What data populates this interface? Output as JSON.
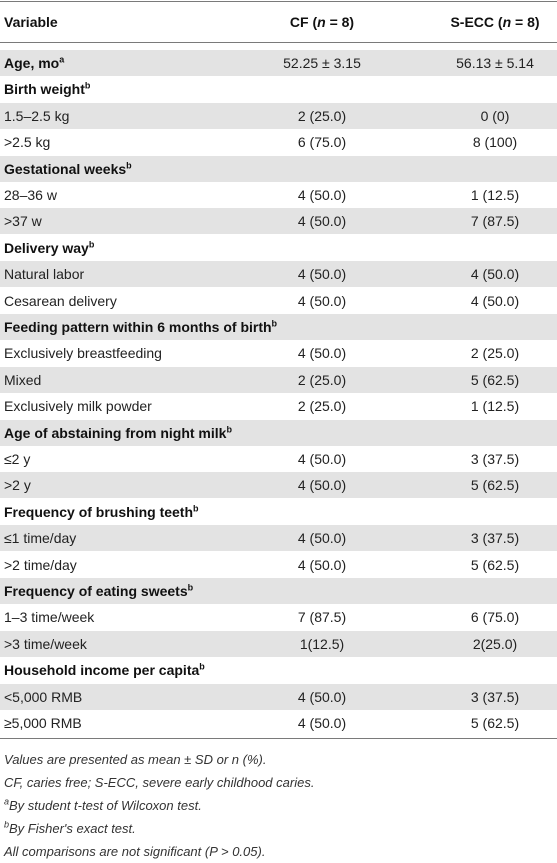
{
  "header": {
    "variable": "Variable",
    "cf_label": "CF (",
    "cf_n": "n",
    "cf_count": " = 8)",
    "secc_label": "S-ECC (",
    "secc_n": "n",
    "secc_count": " = 8)"
  },
  "rows": [
    {
      "label": "Age, mo",
      "sup": "a",
      "cf": "52.25 ± 3.15",
      "secc": "56.13 ± 5.14",
      "section": true
    },
    {
      "label": "Birth weight",
      "sup": "b",
      "cf": "",
      "secc": "",
      "section": true
    },
    {
      "label": "1.5–2.5 kg",
      "sup": "",
      "cf": "2 (25.0)",
      "secc": "0 (0)",
      "section": false
    },
    {
      "label": ">2.5 kg",
      "sup": "",
      "cf": "6 (75.0)",
      "secc": "8 (100)",
      "section": false
    },
    {
      "label": "Gestational weeks",
      "sup": "b",
      "cf": "",
      "secc": "",
      "section": true
    },
    {
      "label": "28–36 w",
      "sup": "",
      "cf": "4 (50.0)",
      "secc": "1 (12.5)",
      "section": false
    },
    {
      "label": ">37 w",
      "sup": "",
      "cf": "4 (50.0)",
      "secc": "7 (87.5)",
      "section": false
    },
    {
      "label": "Delivery way",
      "sup": "b",
      "cf": "",
      "secc": "",
      "section": true
    },
    {
      "label": "Natural labor",
      "sup": "",
      "cf": "4 (50.0)",
      "secc": "4 (50.0)",
      "section": false
    },
    {
      "label": "Cesarean delivery",
      "sup": "",
      "cf": "4 (50.0)",
      "secc": "4 (50.0)",
      "section": false
    },
    {
      "label": "Feeding pattern within 6 months of birth",
      "sup": "b",
      "cf": "",
      "secc": "",
      "section": true
    },
    {
      "label": "Exclusively breastfeeding",
      "sup": "",
      "cf": "4 (50.0)",
      "secc": "2 (25.0)",
      "section": false
    },
    {
      "label": "Mixed",
      "sup": "",
      "cf": "2 (25.0)",
      "secc": "5 (62.5)",
      "section": false
    },
    {
      "label": "Exclusively milk powder",
      "sup": "",
      "cf": "2 (25.0)",
      "secc": "1 (12.5)",
      "section": false
    },
    {
      "label": "Age of abstaining from night milk",
      "sup": "b",
      "cf": "",
      "secc": "",
      "section": true
    },
    {
      "label": "≤2 y",
      "sup": "",
      "cf": "4 (50.0)",
      "secc": "3 (37.5)",
      "section": false
    },
    {
      "label": ">2 y",
      "sup": "",
      "cf": "4 (50.0)",
      "secc": "5 (62.5)",
      "section": false
    },
    {
      "label": "Frequency of brushing teeth",
      "sup": "b",
      "cf": "",
      "secc": "",
      "section": true
    },
    {
      "label": "≤1 time/day",
      "sup": "",
      "cf": "4 (50.0)",
      "secc": "3 (37.5)",
      "section": false
    },
    {
      "label": ">2 time/day",
      "sup": "",
      "cf": "4 (50.0)",
      "secc": "5 (62.5)",
      "section": false
    },
    {
      "label": "Frequency of eating sweets",
      "sup": "b",
      "cf": "",
      "secc": "",
      "section": true
    },
    {
      "label": "1–3 time/week",
      "sup": "",
      "cf": "7 (87.5)",
      "secc": "6 (75.0)",
      "section": false
    },
    {
      "label": ">3 time/week",
      "sup": "",
      "cf": "1(12.5)",
      "secc": "2(25.0)",
      "section": false
    },
    {
      "label": "Household income per capita",
      "sup": "b",
      "cf": "",
      "secc": "",
      "section": true
    },
    {
      "label": "<5,000 RMB",
      "sup": "",
      "cf": "4 (50.0)",
      "secc": "3 (37.5)",
      "section": false
    },
    {
      "label": "≥5,000 RMB",
      "sup": "",
      "cf": "4 (50.0)",
      "secc": "5 (62.5)",
      "section": false
    }
  ],
  "footnotes": [
    {
      "sup": "",
      "text": "Values are presented as mean ± SD or n (%)."
    },
    {
      "sup": "",
      "text": "CF, caries free; S-ECC, severe early childhood caries."
    },
    {
      "sup": "a",
      "text": "By student t-test of Wilcoxon test."
    },
    {
      "sup": "b",
      "text": "By Fisher's exact test."
    },
    {
      "sup": "",
      "text": "All comparisons are not significant (P > 0.05)."
    }
  ]
}
